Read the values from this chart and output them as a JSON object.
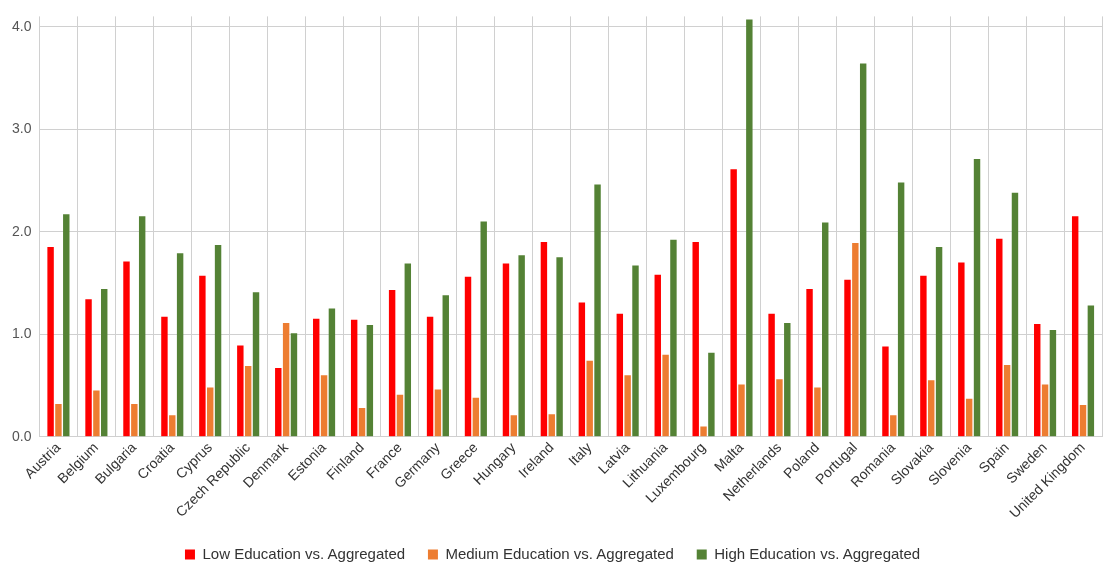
{
  "chart_data": {
    "type": "bar",
    "categories": [
      "Austria",
      "Belgium",
      "Bulgaria",
      "Croatia",
      "Cyprus",
      "Czech Republic",
      "Denmark",
      "Estonia",
      "Finland",
      "France",
      "Germany",
      "Greece",
      "Hungary",
      "Ireland",
      "Italy",
      "Latvia",
      "Lithuania",
      "Luxembourg",
      "Malta",
      "Netherlands",
      "Poland",
      "Portugal",
      "Romania",
      "Slovakia",
      "Slovenia",
      "Spain",
      "Sweden",
      "United Kingdom"
    ],
    "series": [
      {
        "name": "Low Education vs. Aggregated",
        "color": "#ff0000",
        "values": [
          1.85,
          1.34,
          1.71,
          1.17,
          1.57,
          0.89,
          0.67,
          1.15,
          1.14,
          1.43,
          1.17,
          1.56,
          1.69,
          1.9,
          1.31,
          1.2,
          1.58,
          1.9,
          2.61,
          1.2,
          1.44,
          1.53,
          0.88,
          1.57,
          1.7,
          1.93,
          1.1,
          2.15
        ]
      },
      {
        "name": "Medium Education vs. Aggregated",
        "color": "#ed7d31",
        "values": [
          0.32,
          0.45,
          0.32,
          0.21,
          0.48,
          0.69,
          1.11,
          0.6,
          0.28,
          0.41,
          0.46,
          0.38,
          0.21,
          0.22,
          0.74,
          0.6,
          0.8,
          0.1,
          0.51,
          0.56,
          0.48,
          1.89,
          0.21,
          0.55,
          0.37,
          0.7,
          0.51,
          0.31
        ]
      },
      {
        "name": "High Education vs. Aggregated",
        "color": "#548235",
        "values": [
          2.17,
          1.44,
          2.15,
          1.79,
          1.87,
          1.41,
          1.01,
          1.25,
          1.09,
          1.69,
          1.38,
          2.1,
          1.77,
          1.75,
          2.46,
          1.67,
          1.92,
          0.82,
          4.07,
          1.11,
          2.09,
          3.64,
          2.48,
          1.85,
          2.71,
          2.38,
          1.04,
          1.28
        ]
      }
    ],
    "ylim": [
      0,
      4.1
    ],
    "yticks": [
      {
        "value": 0,
        "label": "0.0"
      },
      {
        "value": 1,
        "label": "1.0"
      },
      {
        "value": 2,
        "label": "2.0"
      },
      {
        "value": 3,
        "label": "3.0"
      },
      {
        "value": 4,
        "label": "4.0"
      }
    ],
    "grid": true,
    "legend": "bottom"
  }
}
